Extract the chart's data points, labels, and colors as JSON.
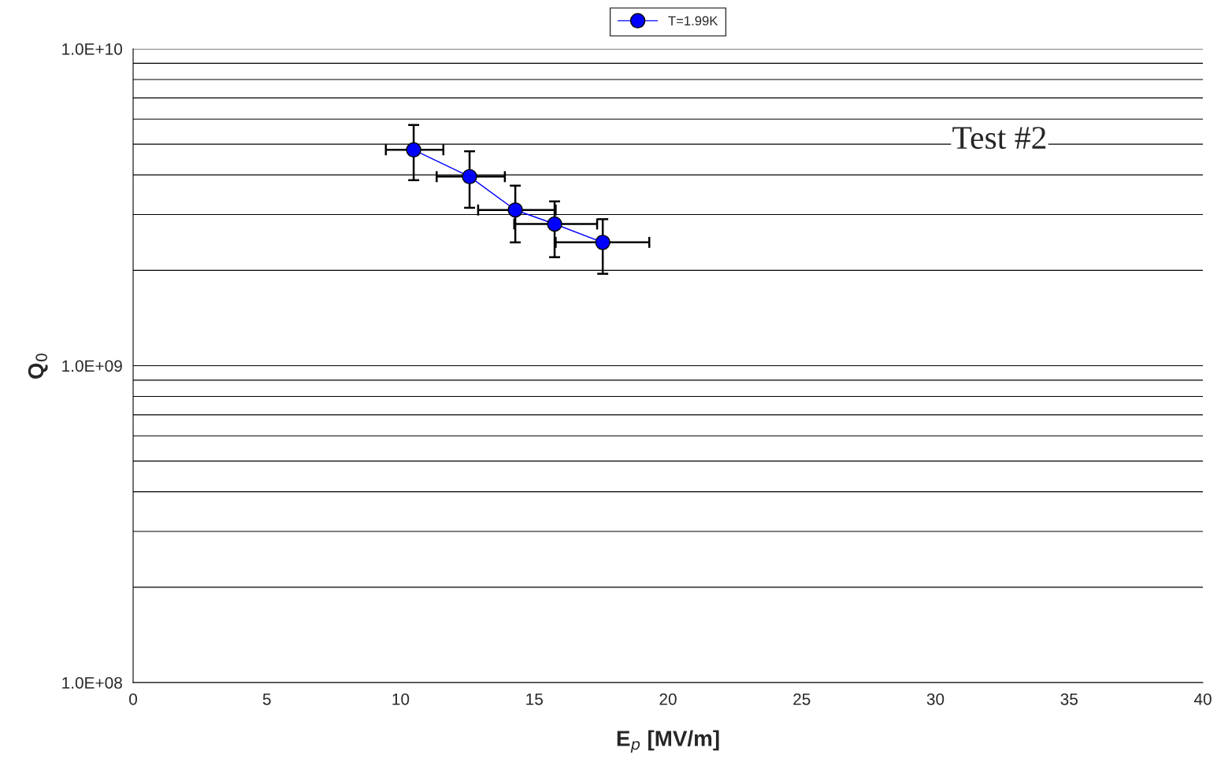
{
  "chart_data": {
    "type": "line",
    "xlabel": "E$_{p}$ [MV/m]",
    "ylabel": "Q$_{0}$",
    "x": [
      10.49,
      12.58,
      14.29,
      15.76,
      17.56
    ],
    "series": [
      {
        "name": "T=1.99K",
        "color": "#0000ff",
        "values": [
          4800000000.0,
          3950000000.0,
          3100000000.0,
          2800000000.0,
          2450000000.0
        ],
        "errors": [
          [
            3850000000.0,
            5750000000.0
          ],
          [
            3150000000.0,
            4750000000.0
          ],
          [
            2450000000.0,
            3700000000.0
          ],
          [
            2200000000.0,
            3300000000.0
          ],
          [
            1950000000.0,
            2900000000.0
          ]
        ],
        "xerrors": [
          [
            9.45,
            11.6
          ],
          [
            11.35,
            13.9
          ],
          [
            12.9,
            15.8
          ],
          [
            14.25,
            17.35
          ],
          [
            15.8,
            19.3
          ]
        ]
      }
    ],
    "xlim": [
      0,
      40
    ],
    "xticks": [
      0,
      5,
      10,
      15,
      20,
      25,
      30,
      35,
      40
    ],
    "ylim": [
      100000000.0,
      10000000000.0
    ],
    "yticks": [
      {
        "value": 100000000.0,
        "label": "1.0E+08"
      },
      {
        "value": 1000000000.0,
        "label": "1.0E+09"
      },
      {
        "value": 10000000000.0,
        "label": "1.0E+10"
      }
    ],
    "log": "y",
    "grid": "y",
    "legend": "top",
    "marker": "circle",
    "line_style": "solid",
    "annotations": [
      "Test #2"
    ]
  }
}
